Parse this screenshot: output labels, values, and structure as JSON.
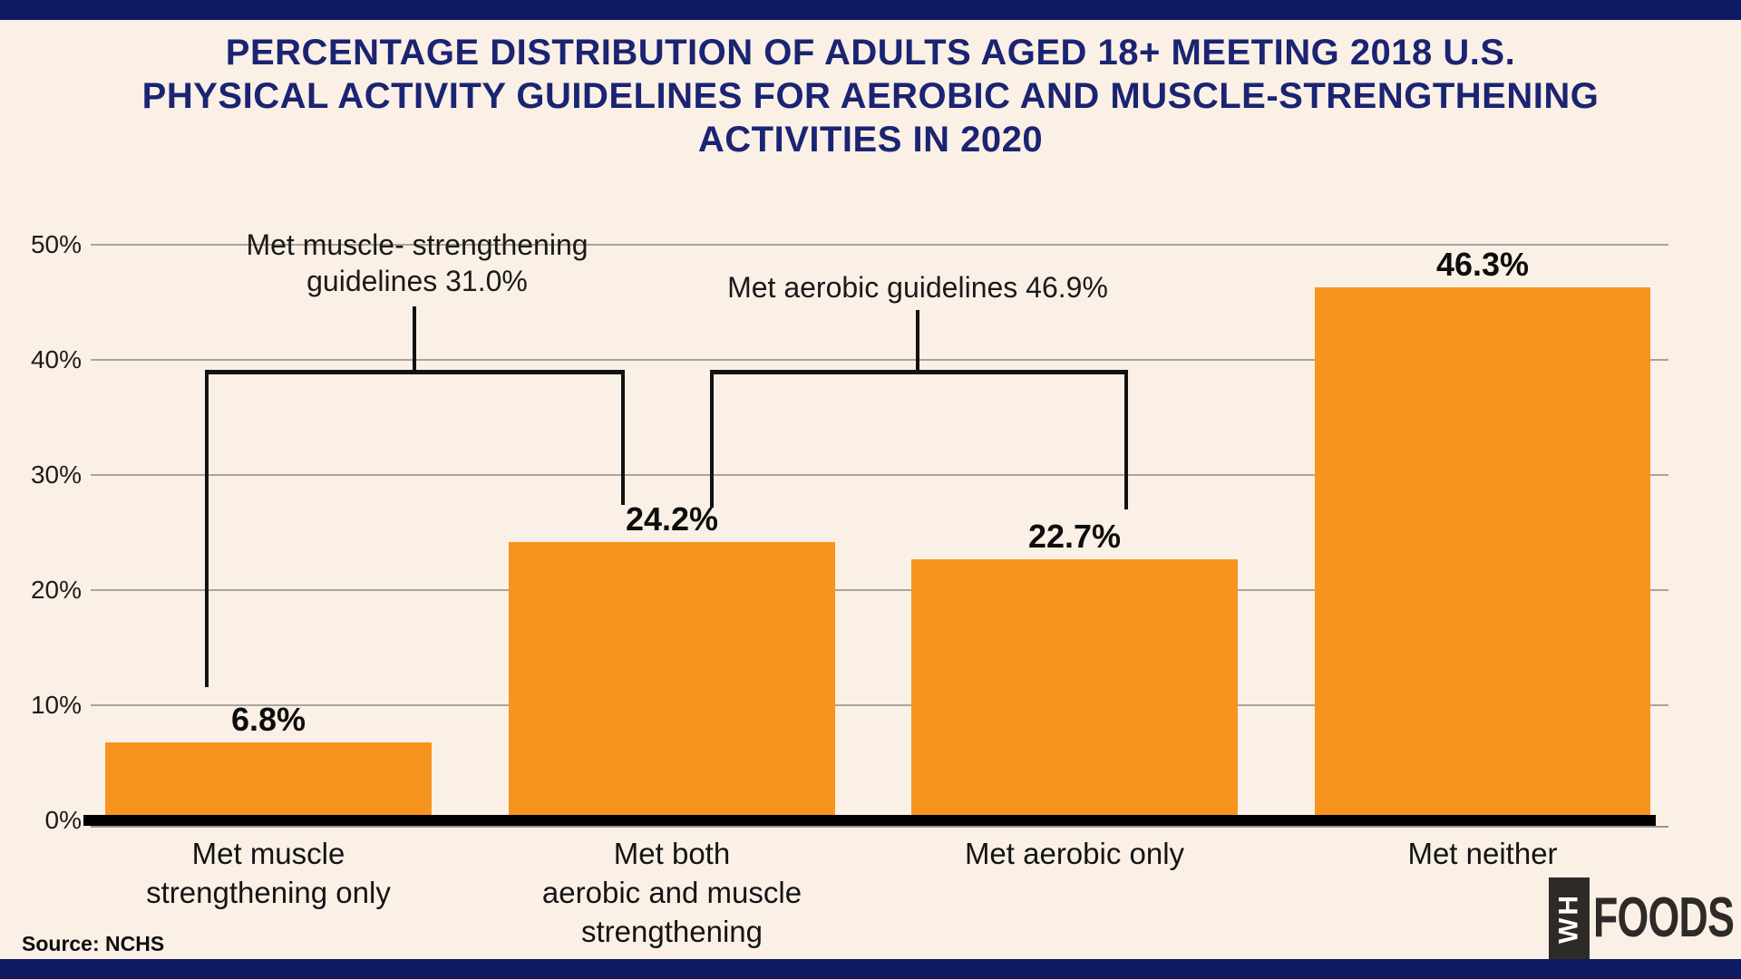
{
  "page": {
    "background_color": "#FBF0E6",
    "band_color": "#0E1B63",
    "title_color": "#1B2472",
    "accent_orange": "#F7941E"
  },
  "title": {
    "lines": [
      "PERCENTAGE DISTRIBUTION OF ADULTS AGED 18+ MEETING 2018 U.S.",
      "PHYSICAL ACTIVITY GUIDELINES FOR AEROBIC AND MUSCLE-STRENGTHENING",
      "ACTIVITIES IN 2020"
    ]
  },
  "chart_data": {
    "type": "bar",
    "title": "Percentage distribution of adults aged 18+ meeting 2018 U.S. physical activity guidelines for aerobic and muscle-strengthening activities in 2020",
    "categories": [
      "Met muscle strengthening only",
      "Met both aerobic and muscle strengthening",
      "Met aerobic only",
      "Met neither"
    ],
    "category_lines": [
      [
        "Met muscle",
        "strengthening only"
      ],
      [
        "Met both",
        "aerobic and muscle",
        "strengthening"
      ],
      [
        "Met aerobic only"
      ],
      [
        "Met neither"
      ]
    ],
    "values": [
      6.8,
      24.2,
      22.7,
      46.3
    ],
    "value_labels": [
      "6.8%",
      "24.2%",
      "22.7%",
      "46.3%"
    ],
    "bar_color": "#F7941E",
    "xlabel": "",
    "ylabel": "",
    "ylim": [
      0,
      50
    ],
    "yticks": [
      "50%",
      "40%",
      "30%",
      "20%",
      "10%",
      "0%"
    ],
    "grid": true,
    "annotations": [
      {
        "lines": [
          "Met muscle- strengthening",
          "guidelines 31.0%"
        ],
        "value": 31.0,
        "covers": [
          "Met muscle strengthening only",
          "Met both aerobic and muscle strengthening"
        ]
      },
      {
        "lines": [
          "Met aerobic guidelines 46.9%"
        ],
        "value": 46.9,
        "covers": [
          "Met both aerobic and muscle strengthening",
          "Met aerobic only"
        ]
      }
    ]
  },
  "footer": {
    "source": "Source: NCHS"
  },
  "logo": {
    "vertical_text": "WH",
    "text": "FOODS"
  }
}
